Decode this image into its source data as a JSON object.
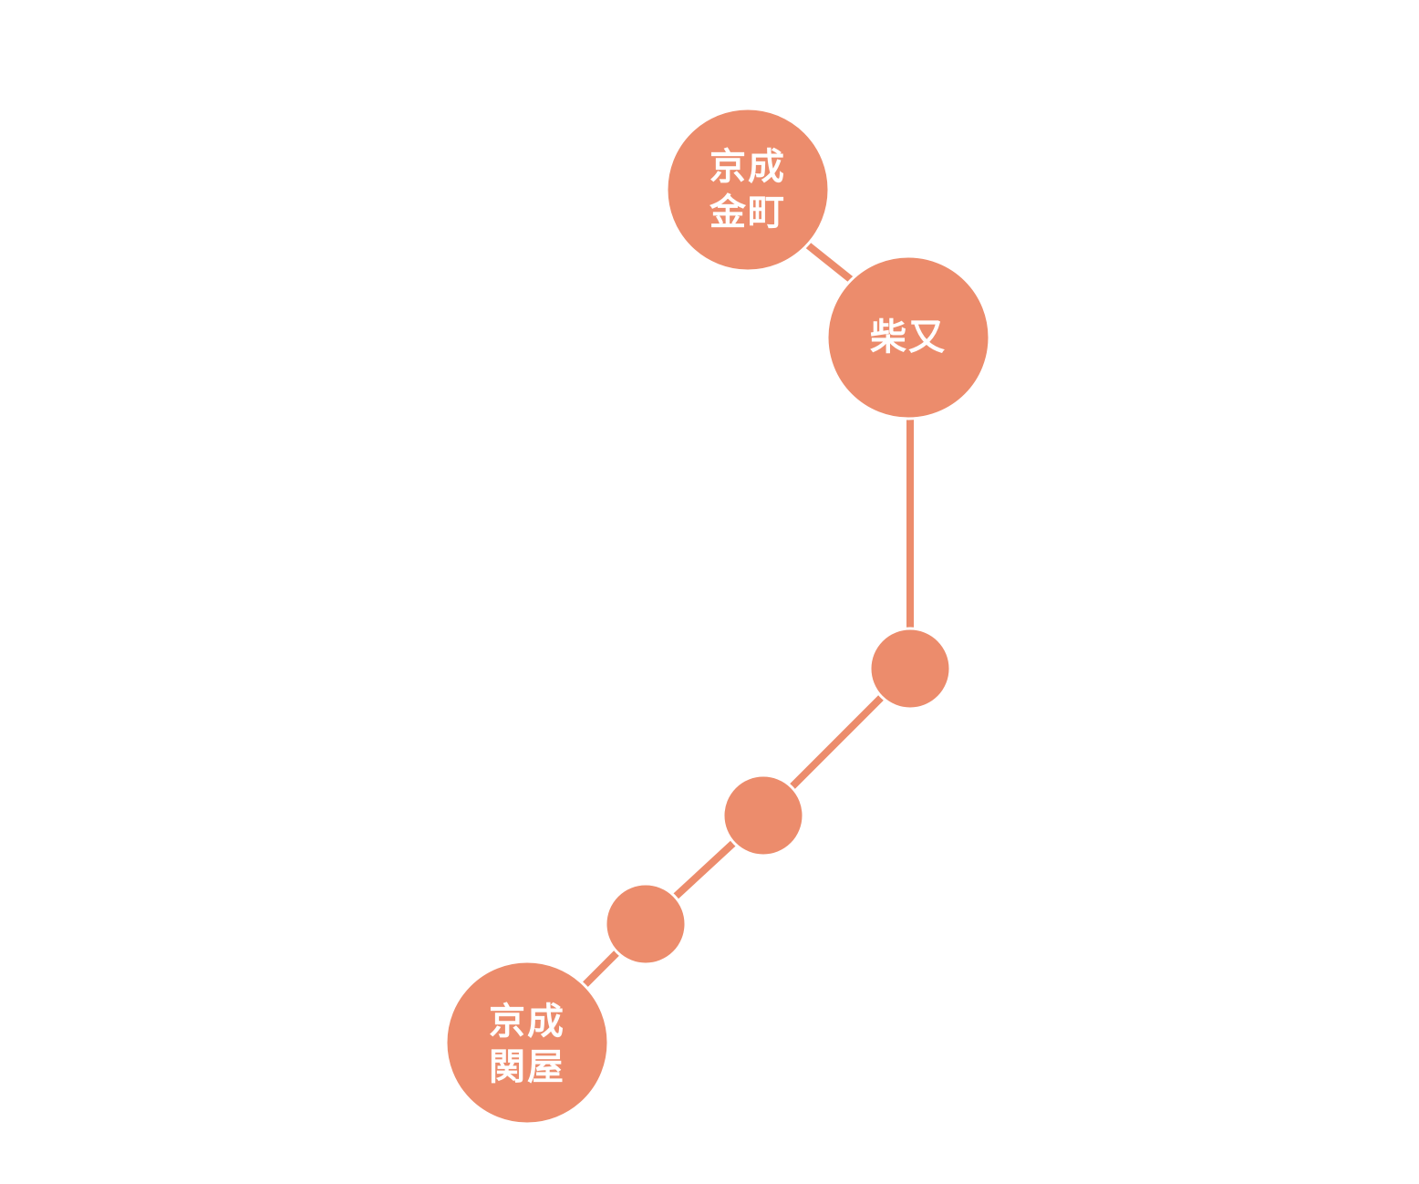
{
  "line_color": "#EC8C6C",
  "label_color": "#FFFFFF",
  "stations": [
    {
      "name": "京成\n金町",
      "type": "major"
    },
    {
      "name": "柴又",
      "type": "major"
    },
    {
      "name": "",
      "type": "minor"
    },
    {
      "name": "",
      "type": "minor"
    },
    {
      "name": "",
      "type": "minor"
    },
    {
      "name": "京成\n関屋",
      "type": "major"
    }
  ]
}
